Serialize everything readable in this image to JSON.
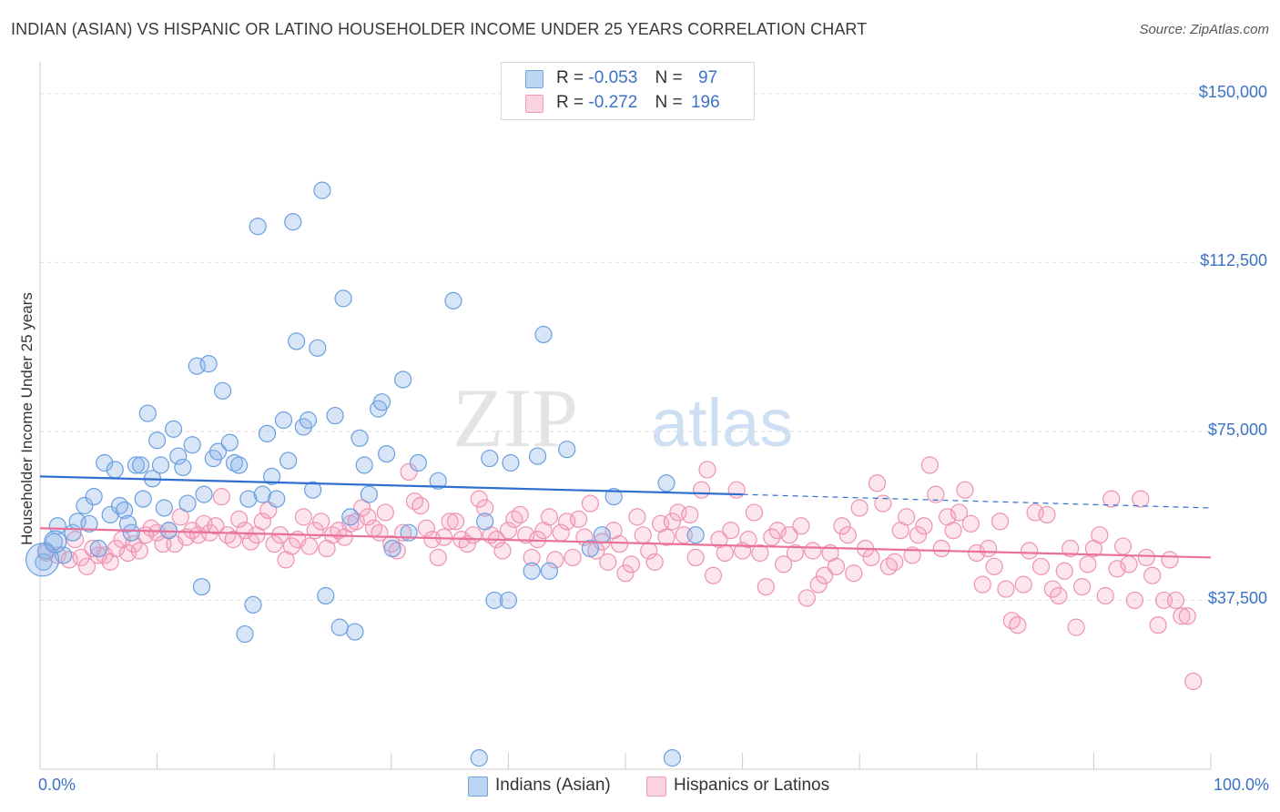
{
  "title": "INDIAN (ASIAN) VS HISPANIC OR LATINO HOUSEHOLDER INCOME UNDER 25 YEARS CORRELATION CHART",
  "source": "Source: ZipAtlas.com",
  "watermark": {
    "zip": "ZIP",
    "atlas": "atlas"
  },
  "legend_top": {
    "rows": [
      {
        "r_label": "R =",
        "r_value": "-0.053",
        "n_label": "N =",
        "n_value": "97",
        "color": "#6fa3e0"
      },
      {
        "r_label": "R =",
        "r_value": "-0.272",
        "n_label": "N =",
        "n_value": "196",
        "color": "#f19bb8"
      }
    ]
  },
  "legend_bottom": {
    "items": [
      {
        "label": "Indians (Asian)",
        "color": "#6fa3e0"
      },
      {
        "label": "Hispanics or Latinos",
        "color": "#f19bb8"
      }
    ]
  },
  "chart_data": {
    "type": "scatter",
    "xlabel": "",
    "ylabel": "Householder Income Under 25 years",
    "xlim": [
      0,
      100
    ],
    "ylim": [
      0,
      155000
    ],
    "x_tick_labels": [
      "0.0%",
      "100.0%"
    ],
    "y_ticks": [
      37500,
      75000,
      112500,
      150000
    ],
    "y_tick_labels": [
      "$37,500",
      "$75,000",
      "$112,500",
      "$150,000"
    ],
    "grid": true,
    "legend_position": "top-center",
    "series": [
      {
        "name": "Indians (Asian)",
        "color": "#6fa3e0",
        "trend": {
          "x0": 0,
          "y0": 65000,
          "x1": 60,
          "y1": 61000,
          "dashed_to_x": 100,
          "dashed_to_y": 58000
        },
        "points": [
          [
            0.3,
            46000
          ],
          [
            0.5,
            48500
          ],
          [
            1.2,
            50500
          ],
          [
            1.5,
            54000
          ],
          [
            2.0,
            47500
          ],
          [
            2.8,
            52500
          ],
          [
            3.2,
            55000
          ],
          [
            3.8,
            58500
          ],
          [
            4.2,
            54500
          ],
          [
            4.6,
            60500
          ],
          [
            5.0,
            49000
          ],
          [
            5.5,
            68000
          ],
          [
            6.0,
            56500
          ],
          [
            6.4,
            66500
          ],
          [
            6.8,
            58500
          ],
          [
            7.2,
            57500
          ],
          [
            7.5,
            54500
          ],
          [
            7.8,
            52500
          ],
          [
            8.2,
            67500
          ],
          [
            8.6,
            67500
          ],
          [
            8.8,
            60000
          ],
          [
            9.2,
            79000
          ],
          [
            9.6,
            64500
          ],
          [
            10.0,
            73000
          ],
          [
            10.3,
            67500
          ],
          [
            10.6,
            58000
          ],
          [
            11.0,
            53000
          ],
          [
            11.4,
            75500
          ],
          [
            11.8,
            69500
          ],
          [
            12.2,
            67000
          ],
          [
            12.6,
            59000
          ],
          [
            13.0,
            72000
          ],
          [
            13.4,
            89500
          ],
          [
            13.8,
            40500
          ],
          [
            14.0,
            61000
          ],
          [
            14.4,
            90000
          ],
          [
            14.8,
            69000
          ],
          [
            15.2,
            70500
          ],
          [
            15.6,
            84000
          ],
          [
            16.2,
            72500
          ],
          [
            16.6,
            68000
          ],
          [
            17.0,
            67500
          ],
          [
            17.5,
            30000
          ],
          [
            17.8,
            60000
          ],
          [
            18.2,
            36500
          ],
          [
            18.6,
            120500
          ],
          [
            19.0,
            61000
          ],
          [
            19.4,
            74500
          ],
          [
            19.8,
            65000
          ],
          [
            20.2,
            60000
          ],
          [
            20.8,
            77500
          ],
          [
            21.2,
            68500
          ],
          [
            21.6,
            121500
          ],
          [
            21.9,
            95000
          ],
          [
            22.5,
            76000
          ],
          [
            22.9,
            77500
          ],
          [
            23.3,
            62000
          ],
          [
            23.7,
            93500
          ],
          [
            24.1,
            128500
          ],
          [
            24.4,
            38500
          ],
          [
            25.2,
            78500
          ],
          [
            25.6,
            31500
          ],
          [
            25.9,
            104500
          ],
          [
            26.5,
            56000
          ],
          [
            26.9,
            30500
          ],
          [
            27.3,
            73500
          ],
          [
            27.7,
            67500
          ],
          [
            28.1,
            61000
          ],
          [
            28.9,
            80000
          ],
          [
            29.2,
            81500
          ],
          [
            29.6,
            70000
          ],
          [
            30.1,
            49000
          ],
          [
            31.0,
            86500
          ],
          [
            31.5,
            52500
          ],
          [
            32.3,
            68000
          ],
          [
            34.0,
            64000
          ],
          [
            35.3,
            104000
          ],
          [
            37.5,
            2500
          ],
          [
            38.0,
            55000
          ],
          [
            38.4,
            69000
          ],
          [
            38.8,
            37500
          ],
          [
            40.0,
            37500
          ],
          [
            40.2,
            68000
          ],
          [
            42.0,
            44000
          ],
          [
            42.5,
            69500
          ],
          [
            43.0,
            96500
          ],
          [
            43.5,
            44000
          ],
          [
            45.0,
            71000
          ],
          [
            47.0,
            49000
          ],
          [
            48.0,
            52000
          ],
          [
            49.0,
            60500
          ],
          [
            53.5,
            63500
          ],
          [
            54.0,
            2500
          ],
          [
            56.0,
            52000
          ]
        ]
      },
      {
        "name": "Hispanics or Latinos",
        "color": "#f19bb8",
        "trend": {
          "x0": 0,
          "y0": 53500,
          "x1": 100,
          "y1": 47000
        },
        "points": [
          [
            0.5,
            48000
          ],
          [
            1.5,
            47500
          ],
          [
            2.5,
            46500
          ],
          [
            3.0,
            51000
          ],
          [
            3.5,
            47000
          ],
          [
            4.0,
            45000
          ],
          [
            4.5,
            49000
          ],
          [
            5.0,
            47500
          ],
          [
            5.5,
            47500
          ],
          [
            6.0,
            46000
          ],
          [
            6.5,
            49000
          ],
          [
            7.0,
            51000
          ],
          [
            7.5,
            48000
          ],
          [
            8.0,
            50000
          ],
          [
            8.5,
            48500
          ],
          [
            9.0,
            52000
          ],
          [
            9.5,
            53500
          ],
          [
            10.0,
            52500
          ],
          [
            10.5,
            50000
          ],
          [
            11.0,
            53000
          ],
          [
            11.5,
            50000
          ],
          [
            12.0,
            56000
          ],
          [
            12.5,
            51500
          ],
          [
            13.0,
            53000
          ],
          [
            13.5,
            52000
          ],
          [
            14.0,
            54500
          ],
          [
            14.5,
            52500
          ],
          [
            15.0,
            54000
          ],
          [
            15.5,
            60500
          ],
          [
            16.0,
            52000
          ],
          [
            16.5,
            51000
          ],
          [
            17.0,
            55500
          ],
          [
            17.5,
            53000
          ],
          [
            18.0,
            50500
          ],
          [
            18.5,
            52000
          ],
          [
            19.0,
            55000
          ],
          [
            19.5,
            57500
          ],
          [
            20.0,
            50000
          ],
          [
            20.5,
            52000
          ],
          [
            21.0,
            46500
          ],
          [
            21.5,
            49500
          ],
          [
            22.0,
            51000
          ],
          [
            22.5,
            56000
          ],
          [
            23.0,
            49500
          ],
          [
            23.5,
            53000
          ],
          [
            24.0,
            55000
          ],
          [
            24.5,
            49000
          ],
          [
            25.0,
            52000
          ],
          [
            25.5,
            53000
          ],
          [
            26.0,
            51500
          ],
          [
            26.5,
            54500
          ],
          [
            27.0,
            55000
          ],
          [
            27.5,
            58000
          ],
          [
            28.0,
            56000
          ],
          [
            28.5,
            53500
          ],
          [
            29.0,
            52500
          ],
          [
            29.5,
            57000
          ],
          [
            30.0,
            50000
          ],
          [
            30.5,
            48500
          ],
          [
            31.0,
            52500
          ],
          [
            31.5,
            66000
          ],
          [
            32.0,
            59500
          ],
          [
            32.5,
            58500
          ],
          [
            33.0,
            53500
          ],
          [
            33.5,
            51000
          ],
          [
            34.0,
            47000
          ],
          [
            34.5,
            51500
          ],
          [
            35.0,
            55000
          ],
          [
            35.5,
            55000
          ],
          [
            36.0,
            51000
          ],
          [
            36.5,
            50000
          ],
          [
            37.0,
            52000
          ],
          [
            37.5,
            60000
          ],
          [
            38.0,
            58000
          ],
          [
            38.5,
            52000
          ],
          [
            39.0,
            51000
          ],
          [
            39.5,
            48500
          ],
          [
            40.0,
            53000
          ],
          [
            40.5,
            55500
          ],
          [
            41.0,
            56500
          ],
          [
            41.5,
            52000
          ],
          [
            42.0,
            47000
          ],
          [
            42.5,
            51000
          ],
          [
            43.0,
            53000
          ],
          [
            43.5,
            56000
          ],
          [
            44.0,
            46500
          ],
          [
            44.5,
            52500
          ],
          [
            45.0,
            55000
          ],
          [
            45.5,
            47000
          ],
          [
            46.0,
            55500
          ],
          [
            46.5,
            51500
          ],
          [
            47.0,
            59000
          ],
          [
            47.5,
            48500
          ],
          [
            48.0,
            50500
          ],
          [
            48.5,
            46000
          ],
          [
            49.0,
            53000
          ],
          [
            49.5,
            50000
          ],
          [
            50.0,
            43500
          ],
          [
            50.5,
            45500
          ],
          [
            51.0,
            56000
          ],
          [
            51.5,
            52000
          ],
          [
            52.0,
            48500
          ],
          [
            52.5,
            46000
          ],
          [
            53.0,
            54500
          ],
          [
            53.5,
            51500
          ],
          [
            54.0,
            55000
          ],
          [
            54.5,
            57000
          ],
          [
            55.0,
            52000
          ],
          [
            55.5,
            56500
          ],
          [
            56.0,
            47000
          ],
          [
            56.5,
            62000
          ],
          [
            57.0,
            66500
          ],
          [
            57.5,
            43000
          ],
          [
            58.0,
            51000
          ],
          [
            58.5,
            48000
          ],
          [
            59.0,
            53000
          ],
          [
            59.5,
            62000
          ],
          [
            60.0,
            48500
          ],
          [
            60.5,
            51000
          ],
          [
            61.0,
            57000
          ],
          [
            61.5,
            48000
          ],
          [
            62.0,
            40500
          ],
          [
            62.5,
            51500
          ],
          [
            63.0,
            53000
          ],
          [
            63.5,
            45500
          ],
          [
            64.0,
            52000
          ],
          [
            64.5,
            48000
          ],
          [
            65.0,
            54000
          ],
          [
            65.5,
            38000
          ],
          [
            66.0,
            48500
          ],
          [
            66.5,
            41000
          ],
          [
            67.0,
            43000
          ],
          [
            67.5,
            48000
          ],
          [
            68.0,
            45000
          ],
          [
            68.5,
            54000
          ],
          [
            69.0,
            52000
          ],
          [
            69.5,
            43500
          ],
          [
            70.0,
            58000
          ],
          [
            70.5,
            49000
          ],
          [
            71.0,
            47000
          ],
          [
            71.5,
            63500
          ],
          [
            72.0,
            59000
          ],
          [
            72.5,
            45000
          ],
          [
            73.0,
            46000
          ],
          [
            73.5,
            53000
          ],
          [
            74.0,
            56000
          ],
          [
            74.5,
            47500
          ],
          [
            75.0,
            52000
          ],
          [
            75.5,
            54000
          ],
          [
            76.0,
            67500
          ],
          [
            76.5,
            61000
          ],
          [
            77.0,
            49000
          ],
          [
            77.5,
            56000
          ],
          [
            78.0,
            53000
          ],
          [
            78.5,
            57000
          ],
          [
            79.0,
            62000
          ],
          [
            79.5,
            54500
          ],
          [
            80.0,
            48000
          ],
          [
            80.5,
            41000
          ],
          [
            81.0,
            49000
          ],
          [
            81.5,
            45000
          ],
          [
            82.0,
            55000
          ],
          [
            82.5,
            40000
          ],
          [
            83.0,
            33000
          ],
          [
            83.5,
            32000
          ],
          [
            84.0,
            41000
          ],
          [
            84.5,
            48500
          ],
          [
            85.0,
            57000
          ],
          [
            85.5,
            45000
          ],
          [
            86.0,
            56500
          ],
          [
            86.5,
            40000
          ],
          [
            87.0,
            38500
          ],
          [
            87.5,
            44000
          ],
          [
            88.0,
            49000
          ],
          [
            88.5,
            31500
          ],
          [
            89.0,
            40500
          ],
          [
            89.5,
            45500
          ],
          [
            90.0,
            49000
          ],
          [
            90.5,
            52000
          ],
          [
            91.0,
            38500
          ],
          [
            91.5,
            60000
          ],
          [
            92.0,
            44500
          ],
          [
            92.5,
            49500
          ],
          [
            93.0,
            45500
          ],
          [
            93.5,
            37500
          ],
          [
            94.0,
            60000
          ],
          [
            94.5,
            47000
          ],
          [
            95.0,
            43000
          ],
          [
            95.5,
            32000
          ],
          [
            96.0,
            37500
          ],
          [
            96.5,
            46500
          ],
          [
            97.0,
            37500
          ],
          [
            97.5,
            34000
          ],
          [
            98.0,
            34000
          ],
          [
            98.5,
            19500
          ]
        ]
      }
    ]
  }
}
